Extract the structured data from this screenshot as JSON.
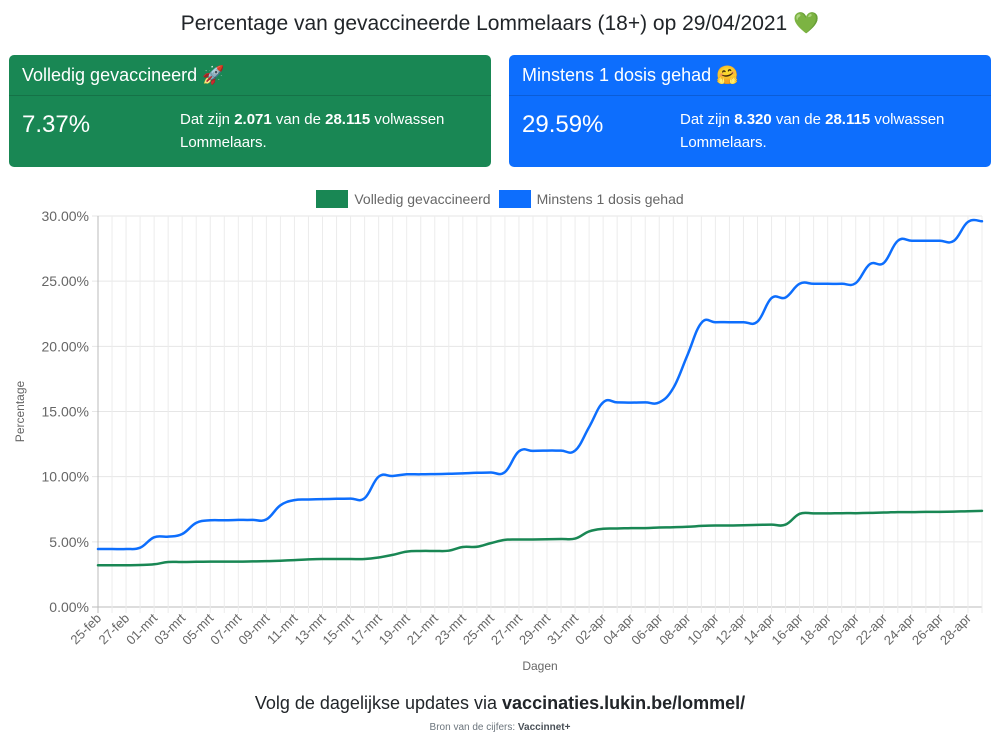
{
  "title": {
    "text": "Percentage van gevaccineerde Lommelaars (18+) op 29/04/2021",
    "emoji": "💚"
  },
  "cards": {
    "full": {
      "header": "Volledig gevaccineerd",
      "emoji": "🚀",
      "percent": "7.37%",
      "text_prefix": "Dat zijn ",
      "count": "2.071",
      "text_mid": " van de ",
      "total": "28.115",
      "text_suffix": " volwassen Lommelaars."
    },
    "first": {
      "header": "Minstens 1 dosis gehad",
      "emoji": "🤗",
      "percent": "29.59%",
      "text_prefix": "Dat zijn ",
      "count": "8.320",
      "text_mid": " van de ",
      "total": "28.115",
      "text_suffix": " volwassen Lommelaars."
    }
  },
  "colors": {
    "green": "#198754",
    "blue": "#0d6efd"
  },
  "chart_data": {
    "type": "line",
    "xlabel": "Dagen",
    "ylabel": "Percentage",
    "ylim": [
      0,
      30
    ],
    "yticks": [
      "0.00%",
      "5.00%",
      "10.00%",
      "15.00%",
      "20.00%",
      "25.00%",
      "30.00%"
    ],
    "grid": true,
    "legend_position": "top",
    "x": [
      "25-feb",
      "26-feb",
      "27-feb",
      "28-feb",
      "01-mrt",
      "02-mrt",
      "03-mrt",
      "04-mrt",
      "05-mrt",
      "06-mrt",
      "07-mrt",
      "08-mrt",
      "09-mrt",
      "10-mrt",
      "11-mrt",
      "12-mrt",
      "13-mrt",
      "14-mrt",
      "15-mrt",
      "16-mrt",
      "17-mrt",
      "18-mrt",
      "19-mrt",
      "20-mrt",
      "21-mrt",
      "22-mrt",
      "23-mrt",
      "24-mrt",
      "25-mrt",
      "26-mrt",
      "27-mrt",
      "28-mrt",
      "29-mrt",
      "30-mrt",
      "31-mrt",
      "01-apr",
      "02-apr",
      "03-apr",
      "04-apr",
      "05-apr",
      "06-apr",
      "07-apr",
      "08-apr",
      "09-apr",
      "10-apr",
      "11-apr",
      "12-apr",
      "13-apr",
      "14-apr",
      "15-apr",
      "16-apr",
      "17-apr",
      "18-apr",
      "19-apr",
      "20-apr",
      "21-apr",
      "22-apr",
      "23-apr",
      "24-apr",
      "25-apr",
      "26-apr",
      "27-apr",
      "28-apr",
      "29-apr"
    ],
    "tick_labels": [
      "25-feb",
      "27-feb",
      "01-mrt",
      "03-mrt",
      "05-mrt",
      "07-mrt",
      "09-mrt",
      "11-mrt",
      "13-mrt",
      "15-mrt",
      "17-mrt",
      "19-mrt",
      "21-mrt",
      "23-mrt",
      "25-mrt",
      "27-mrt",
      "29-mrt",
      "31-mrt",
      "02-apr",
      "04-apr",
      "06-apr",
      "08-apr",
      "10-apr",
      "12-apr",
      "14-apr",
      "16-apr",
      "18-apr",
      "20-apr",
      "22-apr",
      "24-apr",
      "26-apr",
      "28-apr"
    ],
    "series": [
      {
        "name": "Volledig gevaccineerd",
        "color": "#198754",
        "values": [
          3.2,
          3.2,
          3.2,
          3.22,
          3.28,
          3.45,
          3.45,
          3.47,
          3.48,
          3.48,
          3.48,
          3.5,
          3.52,
          3.55,
          3.6,
          3.65,
          3.68,
          3.68,
          3.68,
          3.68,
          3.8,
          4.0,
          4.25,
          4.3,
          4.3,
          4.32,
          4.6,
          4.62,
          4.9,
          5.15,
          5.18,
          5.18,
          5.2,
          5.22,
          5.25,
          5.8,
          6.0,
          6.02,
          6.05,
          6.05,
          6.1,
          6.12,
          6.15,
          6.22,
          6.25,
          6.25,
          6.28,
          6.3,
          6.32,
          6.32,
          7.15,
          7.18,
          7.18,
          7.2,
          7.2,
          7.22,
          7.25,
          7.28,
          7.28,
          7.3,
          7.3,
          7.32,
          7.35,
          7.37
        ]
      },
      {
        "name": "Minstens 1 dosis gehad",
        "color": "#0d6efd",
        "values": [
          4.45,
          4.45,
          4.45,
          4.55,
          5.35,
          5.4,
          5.6,
          6.45,
          6.65,
          6.65,
          6.68,
          6.68,
          6.72,
          7.8,
          8.2,
          8.25,
          8.28,
          8.3,
          8.32,
          8.35,
          10.0,
          10.05,
          10.18,
          10.18,
          10.2,
          10.22,
          10.25,
          10.3,
          10.32,
          10.35,
          11.95,
          11.98,
          12.0,
          12.0,
          12.0,
          13.8,
          15.7,
          15.7,
          15.68,
          15.7,
          15.7,
          16.8,
          19.3,
          21.8,
          21.85,
          21.85,
          21.85,
          21.9,
          23.7,
          23.75,
          24.8,
          24.8,
          24.8,
          24.8,
          24.85,
          26.3,
          26.4,
          28.1,
          28.1,
          28.1,
          28.1,
          28.1,
          29.55,
          29.59
        ]
      }
    ]
  },
  "footer": {
    "text": "Volg de dagelijkse updates via ",
    "link": "vaccinaties.lukin.be/lommel/",
    "source_label": "Bron van de cijfers: ",
    "source_name": "Vaccinnet+"
  }
}
